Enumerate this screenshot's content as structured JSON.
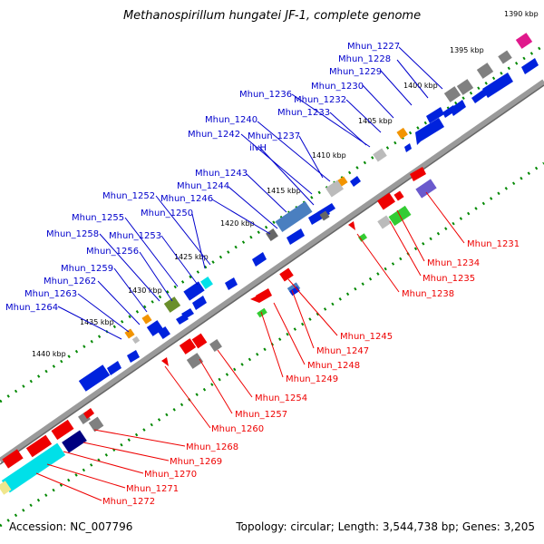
{
  "title": "Methanospirillum hungatei JF-1, complete genome",
  "footer": {
    "accession": "Accession: NC_007796",
    "summary": "Topology: circular; Length: 3,544,738 bp; Genes: 3,205"
  },
  "scale_labels": [
    "1390 kbp",
    "1395 kbp",
    "1400 kbp",
    "1405 kbp",
    "1410 kbp",
    "1415 kbp",
    "1420 kbp",
    "1425 kbp",
    "1430 kbp",
    "1435 kbp",
    "1440 kbp"
  ],
  "top_labels": [
    "Mhun_1227",
    "Mhun_1228",
    "Mhun_1229",
    "Mhun_1230",
    "Mhun_1232",
    "Mhun_1233",
    "Mhun_1236",
    "Mhun_1240",
    "Mhun_1242",
    "Mhun_1237",
    "ilvH",
    "Mhun_1243",
    "Mhun_1244",
    "Mhun_1246",
    "Mhun_1252",
    "Mhun_1250",
    "Mhun_1255",
    "Mhun_1253",
    "Mhun_1258",
    "Mhun_1256",
    "Mhun_1259",
    "Mhun_1262",
    "Mhun_1263",
    "Mhun_1264"
  ],
  "bottom_labels": [
    "Mhun_1231",
    "Mhun_1234",
    "Mhun_1235",
    "Mhun_1238",
    "Mhun_1245",
    "Mhun_1247",
    "Mhun_1248",
    "Mhun_1249",
    "Mhun_1254",
    "Mhun_1257",
    "Mhun_1260",
    "Mhun_1268",
    "Mhun_1269",
    "Mhun_1270",
    "Mhun_1271",
    "Mhun_1272"
  ],
  "colors": {
    "forward_text": "#0000cc",
    "reverse_text": "#ff0000",
    "forward_gene": "#0022dd",
    "reverse_gene": "#ee0000",
    "backbone": "#999999",
    "scale_dots": "#008800"
  }
}
